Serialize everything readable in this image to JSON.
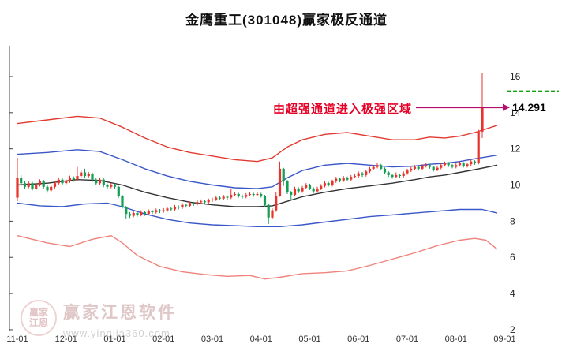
{
  "annotation": {
    "text": "由超强通道进入极强区域",
    "price_label": "14.291",
    "value": 14.291,
    "text_color": "#e60026",
    "arrow_color": "#b60d6a"
  },
  "watermark": {
    "logo_line1": "赢家",
    "logo_line2": "江恩",
    "brand": "赢家江恩软件",
    "url": "www.yingjia360.com"
  },
  "chart_data": {
    "type": "candlestick",
    "title": "金鹰重工(301048)赢家极反通道",
    "legend_position": "none",
    "grid": false,
    "y_axis": {
      "ticks": [
        16,
        14,
        12,
        10,
        8,
        6,
        4,
        2
      ],
      "range": [
        2,
        16
      ],
      "side": "right"
    },
    "x_axis": {
      "ticks": [
        {
          "label": "11-01",
          "index": 0
        },
        {
          "label": "12-01",
          "index": 13
        },
        {
          "label": "01-01",
          "index": 26
        },
        {
          "label": "02-01",
          "index": 39
        },
        {
          "label": "03-01",
          "index": 52
        },
        {
          "label": "04-01",
          "index": 65
        },
        {
          "label": "05-01",
          "index": 78
        },
        {
          "label": "06-01",
          "index": 91
        },
        {
          "label": "07-01",
          "index": 104
        },
        {
          "label": "08-01",
          "index": 117
        },
        {
          "label": "09-01",
          "index": 130
        }
      ]
    },
    "colors": {
      "up": "#e8332c",
      "down": "#129e54",
      "green_dash": "#12a312"
    },
    "green_dash_level": 15.2,
    "candle_format": "o,h,l,c",
    "candles": [
      [
        9.3,
        11.5,
        9.1,
        10.4
      ],
      [
        10.4,
        10.55,
        9.95,
        10.1
      ],
      [
        10.1,
        10.2,
        9.8,
        9.9
      ],
      [
        9.9,
        10.22,
        9.82,
        10.1
      ],
      [
        10.1,
        10.18,
        9.7,
        9.8
      ],
      [
        9.8,
        10.12,
        9.72,
        10.0
      ],
      [
        10.0,
        10.32,
        9.92,
        10.2
      ],
      [
        10.2,
        10.28,
        9.8,
        9.9
      ],
      [
        9.9,
        9.98,
        9.58,
        9.7
      ],
      [
        9.7,
        10.02,
        9.62,
        9.9
      ],
      [
        9.9,
        10.22,
        9.82,
        10.1
      ],
      [
        10.1,
        10.42,
        10.02,
        10.3
      ],
      [
        10.3,
        10.38,
        9.98,
        10.1
      ],
      [
        10.1,
        10.32,
        10.02,
        10.2
      ],
      [
        10.2,
        10.52,
        10.12,
        10.4
      ],
      [
        10.4,
        10.48,
        10.18,
        10.3
      ],
      [
        10.3,
        11.0,
        10.22,
        10.5
      ],
      [
        10.5,
        10.82,
        10.42,
        10.7
      ],
      [
        10.7,
        10.9,
        10.38,
        10.5
      ],
      [
        10.5,
        10.72,
        10.42,
        10.6
      ],
      [
        10.6,
        10.68,
        10.18,
        10.3
      ],
      [
        10.3,
        10.38,
        9.98,
        10.1
      ],
      [
        10.1,
        10.42,
        10.02,
        10.3
      ],
      [
        10.3,
        10.38,
        9.88,
        10.0
      ],
      [
        10.0,
        10.08,
        9.78,
        9.9
      ],
      [
        9.9,
        10.12,
        9.82,
        10.0
      ],
      [
        10.0,
        10.08,
        9.78,
        9.9
      ],
      [
        9.9,
        9.95,
        9.3,
        9.4
      ],
      [
        9.4,
        9.45,
        8.7,
        8.8
      ],
      [
        8.8,
        8.85,
        8.15,
        8.4
      ],
      [
        8.4,
        8.5,
        8.18,
        8.3
      ],
      [
        8.3,
        8.55,
        8.22,
        8.45
      ],
      [
        8.45,
        8.52,
        8.25,
        8.35
      ],
      [
        8.35,
        8.6,
        8.27,
        8.5
      ],
      [
        8.5,
        8.57,
        8.3,
        8.4
      ],
      [
        8.4,
        8.65,
        8.32,
        8.55
      ],
      [
        8.55,
        8.62,
        8.4,
        8.5
      ],
      [
        8.5,
        8.7,
        8.42,
        8.6
      ],
      [
        8.6,
        8.67,
        8.45,
        8.55
      ],
      [
        8.55,
        8.72,
        8.47,
        8.6
      ],
      [
        8.6,
        8.8,
        8.52,
        8.7
      ],
      [
        8.7,
        8.77,
        8.55,
        8.65
      ],
      [
        8.65,
        8.9,
        8.57,
        8.8
      ],
      [
        8.8,
        8.87,
        8.65,
        8.75
      ],
      [
        8.75,
        9.0,
        8.67,
        8.9
      ],
      [
        8.9,
        8.97,
        8.75,
        8.85
      ],
      [
        8.85,
        9.1,
        8.77,
        9.0
      ],
      [
        9.0,
        9.07,
        8.85,
        8.95
      ],
      [
        8.95,
        9.15,
        8.87,
        9.05
      ],
      [
        9.05,
        9.2,
        8.97,
        9.1
      ],
      [
        9.1,
        9.17,
        8.95,
        9.05
      ],
      [
        9.05,
        9.25,
        8.97,
        9.15
      ],
      [
        9.15,
        9.3,
        9.07,
        9.2
      ],
      [
        9.2,
        9.4,
        9.12,
        9.3
      ],
      [
        9.3,
        9.37,
        9.15,
        9.25
      ],
      [
        9.25,
        9.45,
        9.17,
        9.35
      ],
      [
        9.35,
        9.42,
        9.2,
        9.3
      ],
      [
        9.3,
        9.8,
        9.22,
        9.45
      ],
      [
        9.45,
        9.6,
        9.37,
        9.5
      ],
      [
        9.5,
        9.57,
        9.3,
        9.4
      ],
      [
        9.4,
        9.47,
        9.25,
        9.35
      ],
      [
        9.35,
        9.55,
        9.27,
        9.45
      ],
      [
        9.45,
        9.6,
        9.37,
        9.5
      ],
      [
        9.5,
        9.57,
        9.35,
        9.45
      ],
      [
        9.45,
        9.62,
        9.37,
        9.5
      ],
      [
        9.5,
        9.57,
        9.3,
        9.4
      ],
      [
        9.4,
        9.45,
        8.8,
        8.9
      ],
      [
        8.9,
        8.95,
        7.85,
        8.2
      ],
      [
        8.2,
        8.7,
        8.1,
        8.6
      ],
      [
        8.6,
        9.6,
        8.52,
        9.4
      ],
      [
        9.4,
        11.3,
        9.35,
        10.9
      ],
      [
        10.9,
        10.95,
        9.95,
        10.2
      ],
      [
        10.2,
        10.27,
        9.5,
        9.6
      ],
      [
        9.6,
        9.67,
        9.2,
        9.45
      ],
      [
        9.45,
        9.9,
        9.37,
        9.8
      ],
      [
        9.8,
        9.87,
        9.55,
        9.65
      ],
      [
        9.65,
        9.95,
        9.57,
        9.85
      ],
      [
        9.85,
        10.1,
        9.77,
        10.0
      ],
      [
        10.0,
        10.07,
        9.72,
        9.8
      ],
      [
        9.8,
        9.87,
        9.55,
        9.65
      ],
      [
        9.65,
        9.9,
        9.58,
        9.8
      ],
      [
        9.8,
        10.05,
        9.72,
        9.95
      ],
      [
        9.95,
        10.2,
        9.87,
        10.1
      ],
      [
        10.1,
        10.17,
        9.92,
        10.0
      ],
      [
        10.0,
        10.3,
        9.92,
        10.2
      ],
      [
        10.2,
        10.45,
        10.12,
        10.35
      ],
      [
        10.35,
        10.42,
        10.15,
        10.25
      ],
      [
        10.25,
        10.5,
        10.17,
        10.4
      ],
      [
        10.4,
        10.47,
        10.2,
        10.3
      ],
      [
        10.3,
        10.55,
        10.22,
        10.45
      ],
      [
        10.45,
        10.6,
        10.37,
        10.5
      ],
      [
        10.5,
        10.75,
        10.42,
        10.65
      ],
      [
        10.65,
        10.72,
        10.45,
        10.55
      ],
      [
        10.55,
        10.85,
        10.47,
        10.75
      ],
      [
        10.75,
        11.0,
        10.67,
        10.9
      ],
      [
        10.9,
        11.1,
        10.82,
        11.0
      ],
      [
        11.0,
        11.2,
        10.92,
        11.1
      ],
      [
        11.1,
        11.17,
        10.82,
        10.9
      ],
      [
        10.9,
        10.97,
        10.6,
        10.7
      ],
      [
        10.7,
        10.77,
        10.45,
        10.55
      ],
      [
        10.55,
        10.62,
        10.35,
        10.45
      ],
      [
        10.45,
        10.7,
        10.37,
        10.55
      ],
      [
        10.55,
        10.62,
        10.4,
        10.5
      ],
      [
        10.5,
        10.75,
        10.42,
        10.65
      ],
      [
        10.65,
        10.9,
        10.57,
        10.8
      ],
      [
        10.8,
        11.0,
        10.72,
        10.9
      ],
      [
        10.9,
        11.1,
        10.82,
        11.0
      ],
      [
        11.0,
        11.07,
        10.8,
        10.9
      ],
      [
        10.9,
        11.15,
        10.82,
        11.05
      ],
      [
        11.05,
        11.2,
        10.97,
        11.1
      ],
      [
        11.1,
        11.17,
        10.9,
        11.0
      ],
      [
        11.0,
        11.07,
        10.75,
        10.85
      ],
      [
        10.85,
        11.05,
        10.77,
        10.95
      ],
      [
        10.95,
        11.2,
        10.87,
        11.1
      ],
      [
        11.1,
        11.3,
        11.02,
        11.2
      ],
      [
        11.2,
        11.27,
        11.0,
        11.1
      ],
      [
        11.1,
        11.17,
        10.92,
        11.0
      ],
      [
        11.0,
        11.2,
        10.92,
        11.1
      ],
      [
        11.1,
        11.3,
        11.02,
        11.2
      ],
      [
        11.2,
        11.27,
        10.97,
        11.05
      ],
      [
        11.05,
        11.25,
        10.97,
        11.15
      ],
      [
        11.15,
        11.4,
        11.07,
        11.3
      ],
      [
        11.3,
        11.37,
        11.12,
        11.2
      ],
      [
        11.2,
        13.05,
        11.15,
        12.95
      ],
      [
        12.95,
        16.2,
        12.6,
        14.291
      ]
    ],
    "bands": {
      "upper_outer": {
        "color": "#e23b31",
        "anchors": [
          [
            0,
            13.4
          ],
          [
            8,
            13.6
          ],
          [
            16,
            13.8
          ],
          [
            22,
            13.7
          ],
          [
            28,
            13.2
          ],
          [
            34,
            12.6
          ],
          [
            40,
            12.1
          ],
          [
            46,
            11.8
          ],
          [
            52,
            11.6
          ],
          [
            58,
            11.4
          ],
          [
            64,
            11.3
          ],
          [
            68,
            11.5
          ],
          [
            72,
            12.1
          ],
          [
            76,
            12.5
          ],
          [
            82,
            12.8
          ],
          [
            88,
            12.9
          ],
          [
            94,
            12.7
          ],
          [
            100,
            12.5
          ],
          [
            106,
            12.5
          ],
          [
            110,
            12.65
          ],
          [
            114,
            12.6
          ],
          [
            118,
            12.7
          ],
          [
            122,
            12.9
          ],
          [
            128,
            13.3
          ]
        ]
      },
      "upper_inner": {
        "color": "#3a57c8",
        "anchors": [
          [
            0,
            11.7
          ],
          [
            8,
            11.8
          ],
          [
            16,
            11.95
          ],
          [
            22,
            11.85
          ],
          [
            28,
            11.4
          ],
          [
            34,
            10.9
          ],
          [
            40,
            10.5
          ],
          [
            46,
            10.2
          ],
          [
            52,
            10.0
          ],
          [
            58,
            9.85
          ],
          [
            64,
            9.8
          ],
          [
            68,
            9.9
          ],
          [
            72,
            10.4
          ],
          [
            76,
            10.8
          ],
          [
            82,
            11.1
          ],
          [
            88,
            11.2
          ],
          [
            94,
            11.1
          ],
          [
            100,
            11.0
          ],
          [
            106,
            11.05
          ],
          [
            110,
            11.15
          ],
          [
            114,
            11.2
          ],
          [
            118,
            11.3
          ],
          [
            122,
            11.45
          ],
          [
            128,
            11.65
          ]
        ]
      },
      "mid": {
        "color": "#333333",
        "anchors": [
          [
            0,
            10.0
          ],
          [
            8,
            10.1
          ],
          [
            16,
            10.3
          ],
          [
            22,
            10.25
          ],
          [
            28,
            10.0
          ],
          [
            34,
            9.6
          ],
          [
            40,
            9.3
          ],
          [
            46,
            9.05
          ],
          [
            52,
            8.9
          ],
          [
            58,
            8.8
          ],
          [
            64,
            8.8
          ],
          [
            68,
            8.85
          ],
          [
            72,
            9.1
          ],
          [
            76,
            9.35
          ],
          [
            82,
            9.6
          ],
          [
            88,
            9.8
          ],
          [
            94,
            9.95
          ],
          [
            100,
            10.1
          ],
          [
            106,
            10.3
          ],
          [
            110,
            10.45
          ],
          [
            114,
            10.55
          ],
          [
            118,
            10.7
          ],
          [
            122,
            10.85
          ],
          [
            128,
            11.1
          ]
        ]
      },
      "lower_inner": {
        "color": "#3a57c8",
        "anchors": [
          [
            0,
            9.0
          ],
          [
            6,
            8.85
          ],
          [
            12,
            8.8
          ],
          [
            18,
            8.95
          ],
          [
            24,
            9.0
          ],
          [
            28,
            8.8
          ],
          [
            34,
            8.4
          ],
          [
            40,
            8.1
          ],
          [
            46,
            7.9
          ],
          [
            52,
            7.8
          ],
          [
            58,
            7.75
          ],
          [
            64,
            7.7
          ],
          [
            70,
            7.7
          ],
          [
            76,
            7.8
          ],
          [
            82,
            7.95
          ],
          [
            88,
            8.1
          ],
          [
            94,
            8.25
          ],
          [
            100,
            8.35
          ],
          [
            106,
            8.45
          ],
          [
            112,
            8.55
          ],
          [
            118,
            8.65
          ],
          [
            124,
            8.65
          ],
          [
            128,
            8.45
          ]
        ]
      },
      "lower_outer": {
        "color": "#ef837b",
        "anchors": [
          [
            0,
            7.2
          ],
          [
            8,
            6.8
          ],
          [
            14,
            6.6
          ],
          [
            20,
            7.0
          ],
          [
            25,
            7.2
          ],
          [
            28,
            6.8
          ],
          [
            32,
            6.1
          ],
          [
            38,
            5.5
          ],
          [
            44,
            5.2
          ],
          [
            50,
            5.05
          ],
          [
            56,
            4.95
          ],
          [
            62,
            5.0
          ],
          [
            66,
            4.8
          ],
          [
            70,
            4.9
          ],
          [
            76,
            5.1
          ],
          [
            82,
            5.15
          ],
          [
            88,
            5.25
          ],
          [
            94,
            5.55
          ],
          [
            100,
            5.9
          ],
          [
            106,
            6.25
          ],
          [
            112,
            6.65
          ],
          [
            118,
            6.95
          ],
          [
            122,
            7.05
          ],
          [
            125,
            6.95
          ],
          [
            128,
            6.45
          ]
        ]
      }
    }
  }
}
